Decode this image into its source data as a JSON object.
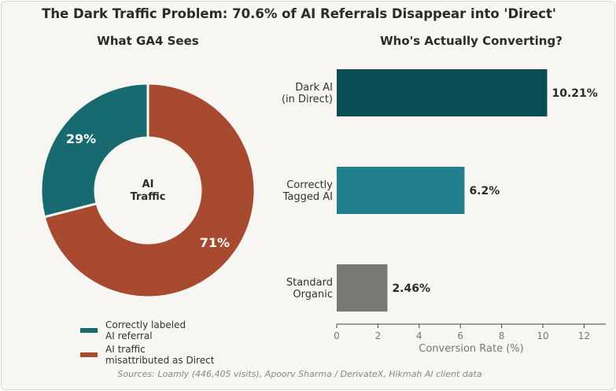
{
  "title": "The Dark Traffic Problem: 70.6% of AI Referrals Disappear into 'Direct'",
  "source": "Sources: Loamly (446,405 visits), Apoorv Sharma / DerivateX, Hikmah AI client data",
  "chart_data": [
    {
      "type": "pie",
      "donut": true,
      "title": "What GA4 Sees",
      "center_label": [
        "AI",
        "Traffic"
      ],
      "slices": [
        {
          "label": "Correctly labeled AI referral",
          "legend_lines": [
            "Correctly labeled",
            "AI referral"
          ],
          "value": 29,
          "display": "29%",
          "color": "#176b70"
        },
        {
          "label": "AI traffic misattributed as Direct",
          "legend_lines": [
            "AI traffic",
            "misattributed as Direct"
          ],
          "value": 71,
          "display": "71%",
          "color": "#a84a2f"
        }
      ],
      "legend_placement": "bottom"
    },
    {
      "type": "bar",
      "orientation": "horizontal",
      "title": "Who's Actually Converting?",
      "categories": [
        {
          "lines": [
            "Dark AI",
            "(in Direct)"
          ],
          "value": 10.21,
          "display": "10.21%",
          "color": "#0b4d55"
        },
        {
          "lines": [
            "Correctly",
            "Tagged AI"
          ],
          "value": 6.2,
          "display": "6.2%",
          "color": "#217f8e"
        },
        {
          "lines": [
            "Standard",
            "Organic"
          ],
          "value": 2.46,
          "display": "2.46%",
          "color": "#7a7873"
        }
      ],
      "xlabel": "Conversion Rate (%)",
      "xlim": [
        0,
        13
      ],
      "xticks": [
        "0",
        "2",
        "4",
        "6",
        "8",
        "10",
        "12"
      ]
    }
  ]
}
